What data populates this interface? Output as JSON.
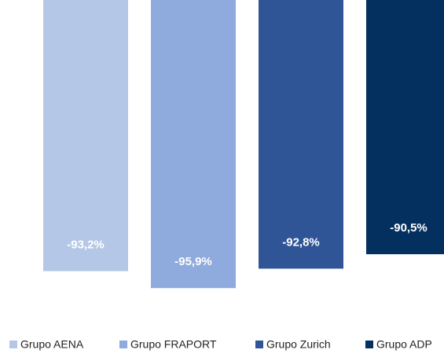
{
  "chart_data": {
    "type": "bar",
    "series": [
      {
        "name": "Grupo AENA",
        "color": "#b4c7e7",
        "values": [
          -93.2
        ],
        "value_labels": [
          "-93,2%"
        ]
      },
      {
        "name": "Grupo FRAPORT",
        "color": "#8faadc",
        "values": [
          -95.9
        ],
        "value_labels": [
          "-95,9%"
        ]
      },
      {
        "name": "Grupo Zurich",
        "color": "#2f5597",
        "values": [
          -92.8
        ],
        "value_labels": [
          "-92,8%"
        ]
      },
      {
        "name": "Grupo ADP",
        "color": "#03305f",
        "values": [
          -90.5
        ],
        "value_labels": [
          "-90,5%"
        ]
      }
    ],
    "ylim": [
      -100,
      -50
    ],
    "legend": "bottom"
  }
}
